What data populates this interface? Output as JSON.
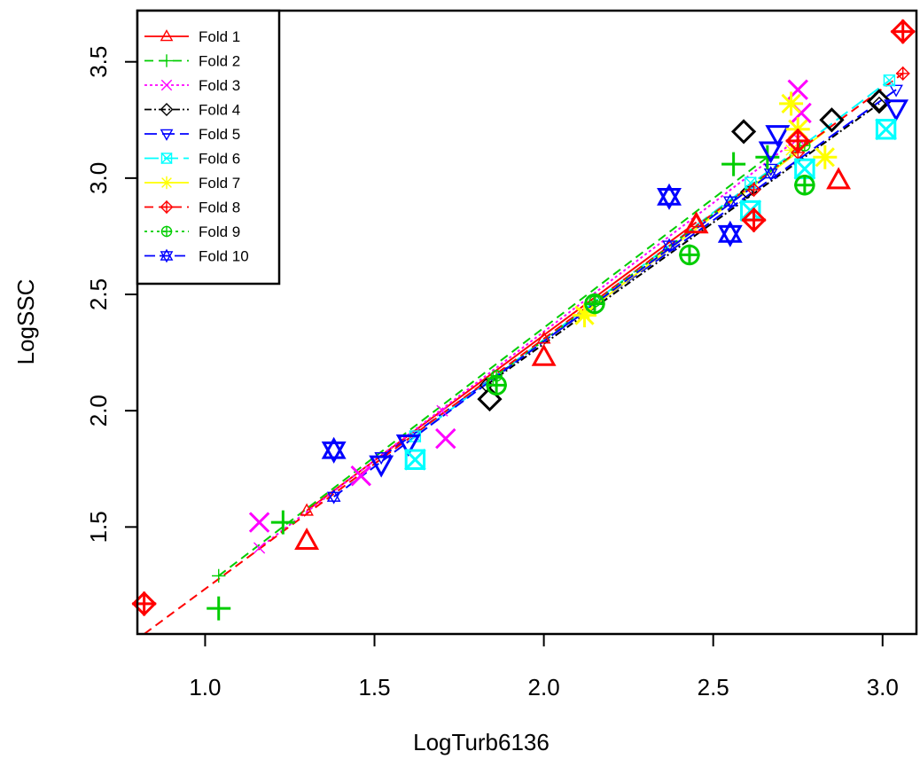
{
  "chart_data": {
    "type": "scatter",
    "title": "",
    "xlabel": "LogTurb6136",
    "ylabel": "LogSSC",
    "xlim": [
      0.8,
      3.1
    ],
    "ylim": [
      1.04,
      3.72
    ],
    "xticks": [
      "1.0",
      "1.5",
      "2.0",
      "2.5",
      "3.0"
    ],
    "yticks": [
      "1.5",
      "2.0",
      "2.5",
      "3.0",
      "3.5"
    ],
    "grid": false,
    "legend_position": "top-left",
    "series": [
      {
        "name": "Fold 1",
        "color": "#ff0000",
        "marker": "triangle",
        "dash": "",
        "line": [
          [
            1.3,
            1.57
          ],
          [
            2.45,
            2.81
          ]
        ],
        "line_points": [
          [
            1.3,
            1.57
          ],
          [
            2.0,
            2.31
          ],
          [
            2.45,
            2.81
          ]
        ],
        "test_points": [
          [
            1.3,
            1.44
          ],
          [
            2.0,
            2.23
          ],
          [
            2.45,
            2.8
          ],
          [
            2.87,
            2.99
          ]
        ]
      },
      {
        "name": "Fold 2",
        "color": "#00cd00",
        "marker": "plus",
        "dash": "10,6",
        "line": [
          [
            1.04,
            1.29
          ],
          [
            2.66,
            3.09
          ]
        ],
        "line_points": [
          [
            1.04,
            1.29
          ],
          [
            1.85,
            2.14
          ],
          [
            2.66,
            3.09
          ]
        ],
        "test_points": [
          [
            1.04,
            1.15
          ],
          [
            1.23,
            1.52
          ],
          [
            2.56,
            3.06
          ],
          [
            2.66,
            3.09
          ]
        ]
      },
      {
        "name": "Fold 3",
        "color": "#ff00ff",
        "marker": "x",
        "dash": "3,3",
        "line": [
          [
            1.16,
            1.41
          ],
          [
            2.75,
            3.17
          ]
        ],
        "line_points": [
          [
            1.16,
            1.41
          ],
          [
            1.7,
            2.0
          ],
          [
            2.75,
            3.17
          ]
        ],
        "test_points": [
          [
            1.16,
            1.52
          ],
          [
            1.46,
            1.72
          ],
          [
            1.71,
            1.88
          ],
          [
            2.75,
            3.38
          ],
          [
            2.76,
            3.28
          ]
        ]
      },
      {
        "name": "Fold 4",
        "color": "#000000",
        "marker": "diamond",
        "dash": "8,3,2,3",
        "line": [
          [
            1.83,
            2.11
          ],
          [
            2.99,
            3.32
          ]
        ],
        "line_points": [
          [
            1.83,
            2.11
          ],
          [
            2.6,
            2.94
          ],
          [
            2.99,
            3.32
          ]
        ],
        "test_points": [
          [
            1.84,
            2.05
          ],
          [
            2.59,
            3.2
          ],
          [
            2.85,
            3.25
          ],
          [
            2.99,
            3.33
          ]
        ]
      },
      {
        "name": "Fold 5",
        "color": "#0000ff",
        "marker": "triangle-down",
        "dash": "14,6",
        "line": [
          [
            1.52,
            1.8
          ],
          [
            3.04,
            3.38
          ]
        ],
        "line_points": [
          [
            1.52,
            1.8
          ],
          [
            2.67,
            3.04
          ],
          [
            3.04,
            3.38
          ]
        ],
        "test_points": [
          [
            1.52,
            1.77
          ],
          [
            1.6,
            1.86
          ],
          [
            2.67,
            3.12
          ],
          [
            2.69,
            3.19
          ],
          [
            3.04,
            3.3
          ]
        ]
      },
      {
        "name": "Fold 6",
        "color": "#00ffff",
        "marker": "box-x",
        "dash": "16,6",
        "line": [
          [
            1.62,
            1.89
          ],
          [
            3.02,
            3.42
          ]
        ],
        "line_points": [
          [
            1.62,
            1.89
          ],
          [
            2.61,
            2.98
          ],
          [
            3.02,
            3.42
          ]
        ],
        "test_points": [
          [
            1.62,
            1.79
          ],
          [
            2.61,
            2.86
          ],
          [
            2.77,
            3.04
          ],
          [
            3.01,
            3.21
          ]
        ]
      },
      {
        "name": "Fold 7",
        "color": "#ffff00",
        "marker": "asterisk",
        "dash": "",
        "line": [
          [
            2.12,
            2.42
          ],
          [
            2.83,
            3.2
          ]
        ],
        "line_points": [
          [
            2.12,
            2.42
          ],
          [
            2.73,
            3.12
          ]
        ],
        "test_points": [
          [
            2.12,
            2.41
          ],
          [
            2.73,
            3.32
          ],
          [
            2.75,
            3.21
          ],
          [
            2.83,
            3.09
          ]
        ]
      },
      {
        "name": "Fold 8",
        "color": "#ff0000",
        "marker": "diamond-plus",
        "dash": "10,6",
        "line": [
          [
            0.82,
            1.04
          ],
          [
            3.06,
            3.45
          ]
        ],
        "line_points": [
          [
            2.62,
            2.95
          ],
          [
            2.75,
            3.11
          ],
          [
            3.06,
            3.45
          ]
        ],
        "test_points": [
          [
            0.82,
            1.17
          ],
          [
            2.62,
            2.82
          ],
          [
            2.75,
            3.16
          ],
          [
            3.06,
            3.63
          ]
        ]
      },
      {
        "name": "Fold 9",
        "color": "#00cd00",
        "marker": "circle-plus",
        "dash": "3,4",
        "line": [
          [
            1.86,
            2.15
          ],
          [
            2.77,
            3.14
          ]
        ],
        "line_points": [
          [
            1.86,
            2.15
          ],
          [
            2.15,
            2.47
          ],
          [
            2.77,
            3.14
          ]
        ],
        "test_points": [
          [
            1.86,
            2.11
          ],
          [
            2.15,
            2.46
          ],
          [
            2.43,
            2.67
          ],
          [
            2.77,
            2.97
          ]
        ]
      },
      {
        "name": "Fold 10",
        "color": "#0000ff",
        "marker": "star-of-david",
        "dash": "12,5",
        "line": [
          [
            1.38,
            1.63
          ],
          [
            2.67,
            3.02
          ]
        ],
        "line_points": [
          [
            1.38,
            1.63
          ],
          [
            2.37,
            2.71
          ],
          [
            2.55,
            2.9
          ],
          [
            2.67,
            3.02
          ]
        ],
        "test_points": [
          [
            1.38,
            1.83
          ],
          [
            2.37,
            2.92
          ],
          [
            2.55,
            2.76
          ]
        ]
      }
    ]
  }
}
